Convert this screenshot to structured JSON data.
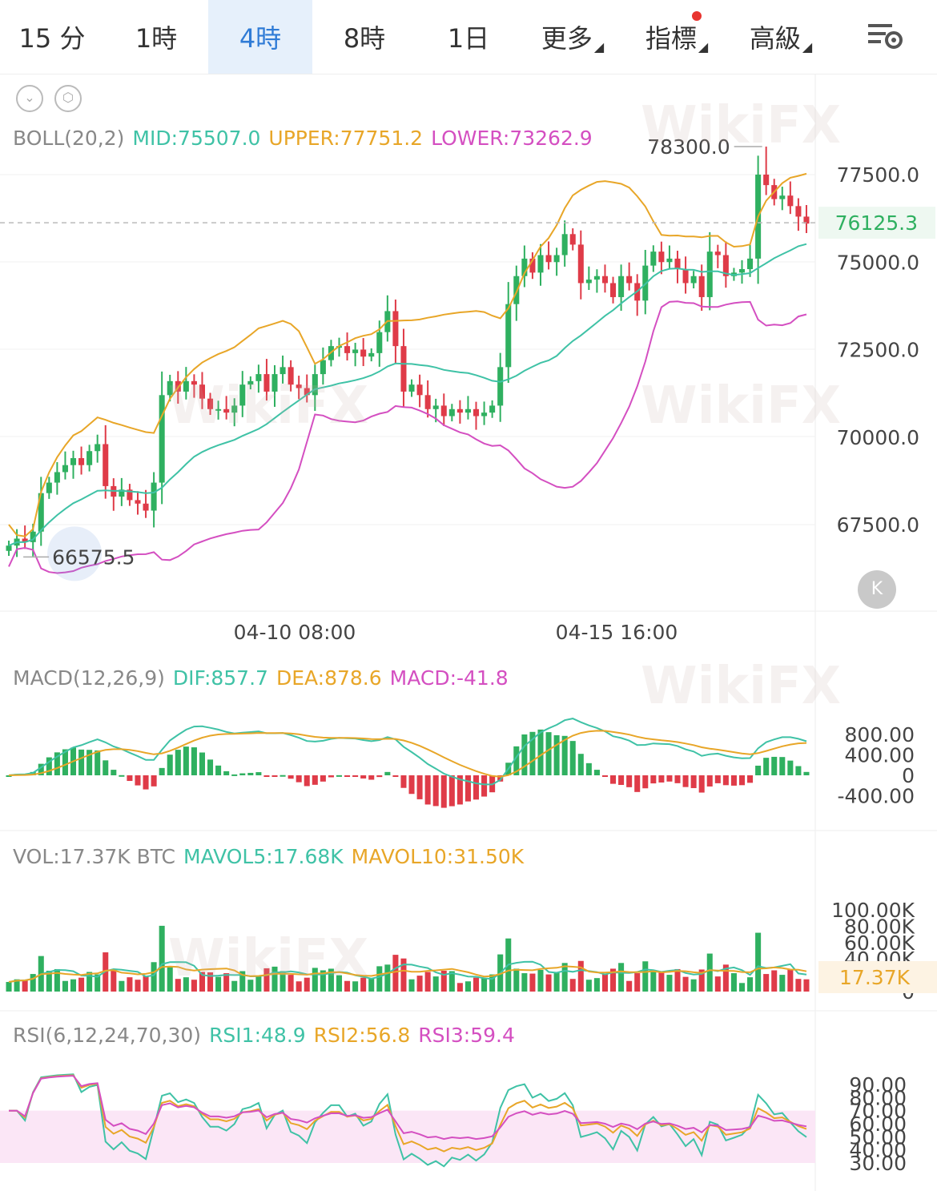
{
  "tabs": [
    {
      "label": "15 分",
      "active": false
    },
    {
      "label": "1時",
      "active": false
    },
    {
      "label": "4時",
      "active": true
    },
    {
      "label": "8時",
      "active": false
    },
    {
      "label": "1日",
      "active": false
    },
    {
      "label": "更多",
      "caret": true
    },
    {
      "label": "指標",
      "caret": true,
      "dot": true
    },
    {
      "label": "高級",
      "caret": true
    }
  ],
  "boll": {
    "name": "BOLL(20,2)",
    "mid": "MID:75507.0",
    "upper": "UPPER:77751.2",
    "lower": "LOWER:73262.9"
  },
  "macd": {
    "name": "MACD(12,26,9)",
    "dif": "DIF:857.7",
    "dea": "DEA:878.6",
    "macd": "MACD:-41.8"
  },
  "vol": {
    "name": "VOL:17.37K BTC",
    "mavol5": "MAVOL5:17.68K",
    "mavol10": "MAVOL10:31.50K"
  },
  "rsi": {
    "name": "RSI(6,12,24,70,30)",
    "rsi1": "RSI1:48.9",
    "rsi2": "RSI2:56.8",
    "rsi3": "RSI3:59.4"
  },
  "watermark": "WikiFX",
  "chart_data": {
    "type": "candlestick",
    "price_axis": {
      "ticks": [
        "77500.0",
        "75000.0",
        "72500.0",
        "70000.0",
        "67500.0"
      ],
      "values": [
        77500,
        75000,
        72500,
        70000,
        67500
      ]
    },
    "last_price": "76125.3",
    "high_label": "78300.0",
    "low_label": "66575.5",
    "x_ticks": [
      "04-10 08:00",
      "04-15 16:00"
    ],
    "close": [
      66900,
      67100,
      67000,
      67300,
      68400,
      68700,
      69000,
      69200,
      69400,
      69200,
      69600,
      69800,
      68600,
      68300,
      68500,
      68200,
      68100,
      67900,
      68700,
      71200,
      71600,
      71300,
      71600,
      71500,
      71100,
      70800,
      70800,
      70700,
      70900,
      71500,
      71600,
      71800,
      71300,
      71800,
      72000,
      71500,
      71400,
      71200,
      71800,
      72200,
      72600,
      72600,
      72400,
      72500,
      72300,
      72400,
      73000,
      73600,
      72600,
      71300,
      71500,
      71200,
      70800,
      70900,
      70600,
      70800,
      70700,
      70800,
      70600,
      70700,
      70900,
      72000,
      73800,
      74600,
      75100,
      74700,
      75200,
      75000,
      75200,
      75800,
      75500,
      74400,
      74500,
      74600,
      74400,
      74000,
      74600,
      74400,
      73900,
      74900,
      75300,
      75000,
      75100,
      74800,
      74400,
      74600,
      74000,
      75300,
      75200,
      74600,
      74700,
      74800,
      75100,
      77500,
      77200,
      76800,
      76900,
      76600,
      76300,
      76100
    ],
    "high_label_index": 94,
    "low_label_index": 1,
    "macd_axis": [
      "800.00",
      "400.00",
      "0",
      "-400.00"
    ],
    "vol_axis": [
      "100.00K",
      "80.00K",
      "60.00K",
      "40.00K",
      "0"
    ],
    "vol_last": "17.37K",
    "rsi_axis": [
      "90.00",
      "80.00",
      "70.00",
      "60.00",
      "50.00",
      "40.00",
      "30.00"
    ]
  }
}
